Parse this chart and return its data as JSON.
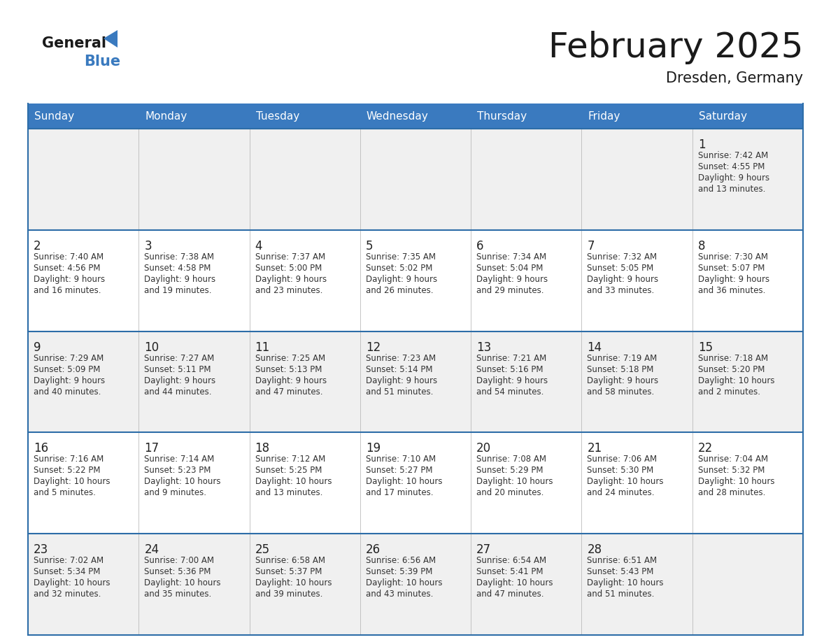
{
  "title": "February 2025",
  "subtitle": "Dresden, Germany",
  "header_color": "#3a7abf",
  "header_text_color": "#ffffff",
  "day_names": [
    "Sunday",
    "Monday",
    "Tuesday",
    "Wednesday",
    "Thursday",
    "Friday",
    "Saturday"
  ],
  "cell_bg_even": "#f0f0f0",
  "cell_bg_odd": "#ffffff",
  "border_color": "#2d6da8",
  "date_color": "#222222",
  "info_color": "#333333",
  "calendar": [
    [
      {
        "day": null,
        "sunrise": null,
        "sunset": null,
        "daylight": null
      },
      {
        "day": null,
        "sunrise": null,
        "sunset": null,
        "daylight": null
      },
      {
        "day": null,
        "sunrise": null,
        "sunset": null,
        "daylight": null
      },
      {
        "day": null,
        "sunrise": null,
        "sunset": null,
        "daylight": null
      },
      {
        "day": null,
        "sunrise": null,
        "sunset": null,
        "daylight": null
      },
      {
        "day": null,
        "sunrise": null,
        "sunset": null,
        "daylight": null
      },
      {
        "day": 1,
        "sunrise": "7:42 AM",
        "sunset": "4:55 PM",
        "daylight_line1": "Daylight: 9 hours",
        "daylight_line2": "and 13 minutes."
      }
    ],
    [
      {
        "day": 2,
        "sunrise": "7:40 AM",
        "sunset": "4:56 PM",
        "daylight_line1": "Daylight: 9 hours",
        "daylight_line2": "and 16 minutes."
      },
      {
        "day": 3,
        "sunrise": "7:38 AM",
        "sunset": "4:58 PM",
        "daylight_line1": "Daylight: 9 hours",
        "daylight_line2": "and 19 minutes."
      },
      {
        "day": 4,
        "sunrise": "7:37 AM",
        "sunset": "5:00 PM",
        "daylight_line1": "Daylight: 9 hours",
        "daylight_line2": "and 23 minutes."
      },
      {
        "day": 5,
        "sunrise": "7:35 AM",
        "sunset": "5:02 PM",
        "daylight_line1": "Daylight: 9 hours",
        "daylight_line2": "and 26 minutes."
      },
      {
        "day": 6,
        "sunrise": "7:34 AM",
        "sunset": "5:04 PM",
        "daylight_line1": "Daylight: 9 hours",
        "daylight_line2": "and 29 minutes."
      },
      {
        "day": 7,
        "sunrise": "7:32 AM",
        "sunset": "5:05 PM",
        "daylight_line1": "Daylight: 9 hours",
        "daylight_line2": "and 33 minutes."
      },
      {
        "day": 8,
        "sunrise": "7:30 AM",
        "sunset": "5:07 PM",
        "daylight_line1": "Daylight: 9 hours",
        "daylight_line2": "and 36 minutes."
      }
    ],
    [
      {
        "day": 9,
        "sunrise": "7:29 AM",
        "sunset": "5:09 PM",
        "daylight_line1": "Daylight: 9 hours",
        "daylight_line2": "and 40 minutes."
      },
      {
        "day": 10,
        "sunrise": "7:27 AM",
        "sunset": "5:11 PM",
        "daylight_line1": "Daylight: 9 hours",
        "daylight_line2": "and 44 minutes."
      },
      {
        "day": 11,
        "sunrise": "7:25 AM",
        "sunset": "5:13 PM",
        "daylight_line1": "Daylight: 9 hours",
        "daylight_line2": "and 47 minutes."
      },
      {
        "day": 12,
        "sunrise": "7:23 AM",
        "sunset": "5:14 PM",
        "daylight_line1": "Daylight: 9 hours",
        "daylight_line2": "and 51 minutes."
      },
      {
        "day": 13,
        "sunrise": "7:21 AM",
        "sunset": "5:16 PM",
        "daylight_line1": "Daylight: 9 hours",
        "daylight_line2": "and 54 minutes."
      },
      {
        "day": 14,
        "sunrise": "7:19 AM",
        "sunset": "5:18 PM",
        "daylight_line1": "Daylight: 9 hours",
        "daylight_line2": "and 58 minutes."
      },
      {
        "day": 15,
        "sunrise": "7:18 AM",
        "sunset": "5:20 PM",
        "daylight_line1": "Daylight: 10 hours",
        "daylight_line2": "and 2 minutes."
      }
    ],
    [
      {
        "day": 16,
        "sunrise": "7:16 AM",
        "sunset": "5:22 PM",
        "daylight_line1": "Daylight: 10 hours",
        "daylight_line2": "and 5 minutes."
      },
      {
        "day": 17,
        "sunrise": "7:14 AM",
        "sunset": "5:23 PM",
        "daylight_line1": "Daylight: 10 hours",
        "daylight_line2": "and 9 minutes."
      },
      {
        "day": 18,
        "sunrise": "7:12 AM",
        "sunset": "5:25 PM",
        "daylight_line1": "Daylight: 10 hours",
        "daylight_line2": "and 13 minutes."
      },
      {
        "day": 19,
        "sunrise": "7:10 AM",
        "sunset": "5:27 PM",
        "daylight_line1": "Daylight: 10 hours",
        "daylight_line2": "and 17 minutes."
      },
      {
        "day": 20,
        "sunrise": "7:08 AM",
        "sunset": "5:29 PM",
        "daylight_line1": "Daylight: 10 hours",
        "daylight_line2": "and 20 minutes."
      },
      {
        "day": 21,
        "sunrise": "7:06 AM",
        "sunset": "5:30 PM",
        "daylight_line1": "Daylight: 10 hours",
        "daylight_line2": "and 24 minutes."
      },
      {
        "day": 22,
        "sunrise": "7:04 AM",
        "sunset": "5:32 PM",
        "daylight_line1": "Daylight: 10 hours",
        "daylight_line2": "and 28 minutes."
      }
    ],
    [
      {
        "day": 23,
        "sunrise": "7:02 AM",
        "sunset": "5:34 PM",
        "daylight_line1": "Daylight: 10 hours",
        "daylight_line2": "and 32 minutes."
      },
      {
        "day": 24,
        "sunrise": "7:00 AM",
        "sunset": "5:36 PM",
        "daylight_line1": "Daylight: 10 hours",
        "daylight_line2": "and 35 minutes."
      },
      {
        "day": 25,
        "sunrise": "6:58 AM",
        "sunset": "5:37 PM",
        "daylight_line1": "Daylight: 10 hours",
        "daylight_line2": "and 39 minutes."
      },
      {
        "day": 26,
        "sunrise": "6:56 AM",
        "sunset": "5:39 PM",
        "daylight_line1": "Daylight: 10 hours",
        "daylight_line2": "and 43 minutes."
      },
      {
        "day": 27,
        "sunrise": "6:54 AM",
        "sunset": "5:41 PM",
        "daylight_line1": "Daylight: 10 hours",
        "daylight_line2": "and 47 minutes."
      },
      {
        "day": 28,
        "sunrise": "6:51 AM",
        "sunset": "5:43 PM",
        "daylight_line1": "Daylight: 10 hours",
        "daylight_line2": "and 51 minutes."
      },
      {
        "day": null,
        "sunrise": null,
        "sunset": null,
        "daylight_line1": null,
        "daylight_line2": null
      }
    ]
  ]
}
